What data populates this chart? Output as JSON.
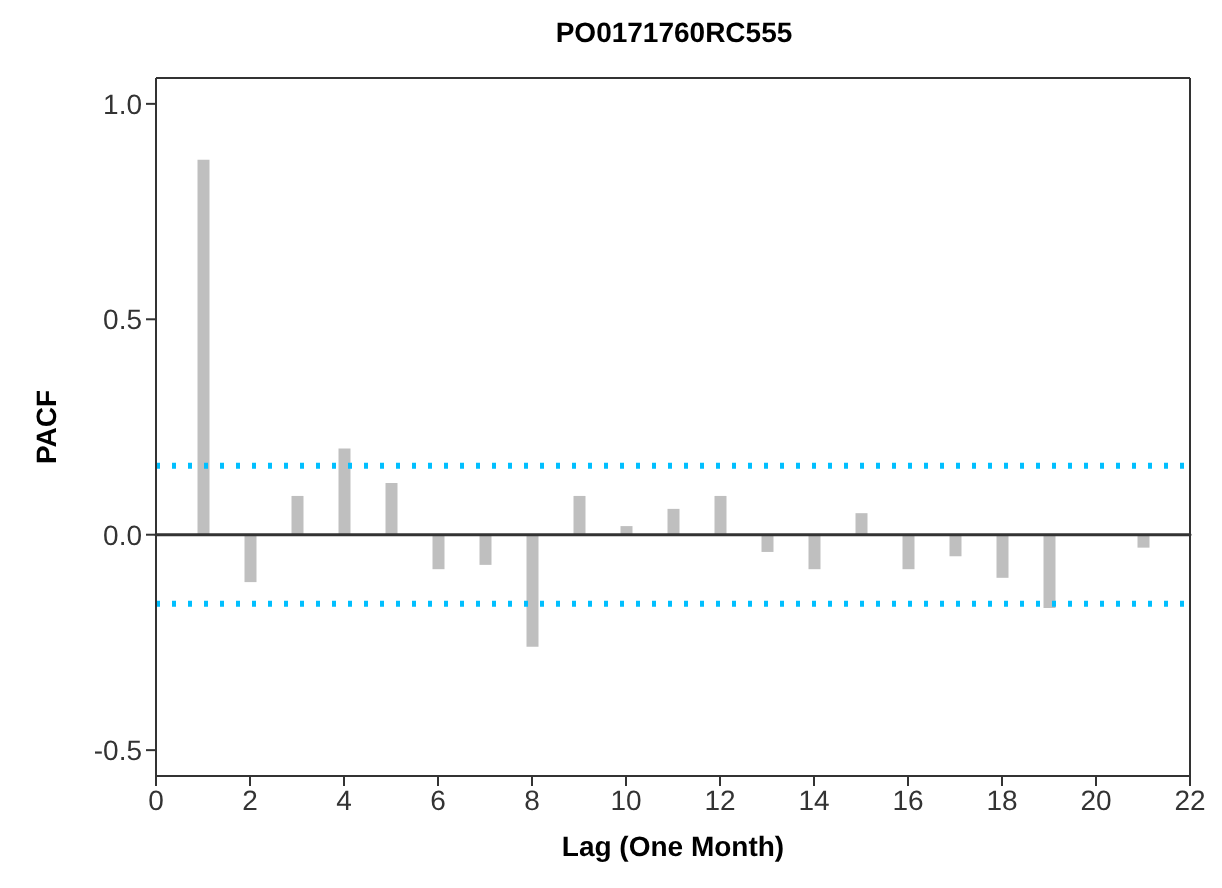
{
  "chart_data": {
    "type": "bar",
    "title": "PO0171760RC555",
    "xlabel": "Lag (One Month)",
    "ylabel": "PACF",
    "x": [
      1,
      2,
      3,
      4,
      5,
      6,
      7,
      8,
      9,
      10,
      11,
      12,
      13,
      14,
      15,
      16,
      17,
      18,
      19,
      20,
      21
    ],
    "values": [
      0.87,
      -0.11,
      0.09,
      0.2,
      0.12,
      -0.08,
      -0.07,
      -0.26,
      0.09,
      0.02,
      0.06,
      0.09,
      -0.04,
      -0.08,
      0.05,
      -0.08,
      -0.05,
      -0.1,
      -0.17,
      0,
      -0.03
    ],
    "color": "#bfbfbf",
    "xlim": [
      0,
      22
    ],
    "xticks": [
      0,
      2,
      4,
      6,
      8,
      10,
      12,
      14,
      16,
      18,
      20,
      22
    ],
    "ylim": [
      -0.56,
      1.06
    ],
    "yticks": [
      {
        "value": -0.5,
        "label": "-0.5"
      },
      {
        "value": 0,
        "label": "0.0"
      },
      {
        "value": 0.5,
        "label": "0.5"
      },
      {
        "value": 1,
        "label": "1.0"
      }
    ],
    "grid": false,
    "legend": false,
    "ref_lines": [
      {
        "axis": "y",
        "value": 0,
        "color": "#333333",
        "line_style": "solid"
      },
      {
        "axis": "y",
        "value": 0.16,
        "color": "#00bfff",
        "line_style": "dotted"
      },
      {
        "axis": "y",
        "value": -0.16,
        "color": "#00bfff",
        "line_style": "dotted"
      }
    ]
  }
}
